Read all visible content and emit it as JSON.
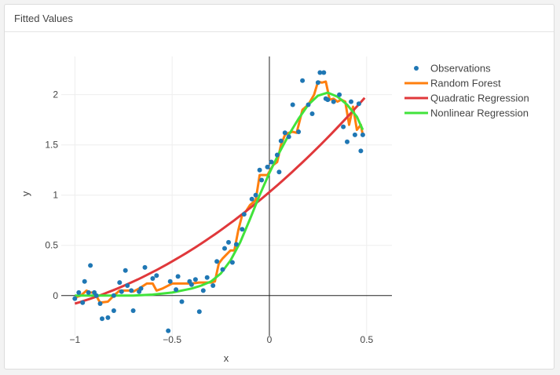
{
  "panel": {
    "title": "Fitted Values"
  },
  "colors": {
    "observations": "#1f77b4",
    "random_forest": "#ff7f0e",
    "quadratic": "#e0383b",
    "nonlinear": "#41e33b",
    "grid": "#eeeeee",
    "zero_line": "#222222"
  },
  "chart_data": {
    "type": "scatter",
    "xlabel": "x",
    "ylabel": "y",
    "xlim": [
      -1.07,
      0.63
    ],
    "ylim": [
      -0.4,
      2.38
    ],
    "x_ticks": [
      -1,
      -0.5,
      0,
      0.5
    ],
    "x_tick_labels": [
      "−1",
      "−0.5",
      "0",
      "0.5"
    ],
    "y_ticks": [
      0,
      0.5,
      1,
      1.5,
      2
    ],
    "y_tick_labels": [
      "0",
      "0.5",
      "1",
      "1.5",
      "2"
    ],
    "grid": true,
    "legend_position": "top-right",
    "series": [
      {
        "name": "Observations",
        "mode": "markers",
        "x": [
          -1.0,
          -0.98,
          -0.96,
          -0.95,
          -0.93,
          -0.92,
          -0.9,
          -0.89,
          -0.87,
          -0.86,
          -0.83,
          -0.8,
          -0.8,
          -0.77,
          -0.76,
          -0.74,
          -0.73,
          -0.71,
          -0.7,
          -0.67,
          -0.66,
          -0.64,
          -0.6,
          -0.58,
          -0.52,
          -0.51,
          -0.48,
          -0.47,
          -0.45,
          -0.41,
          -0.4,
          -0.38,
          -0.36,
          -0.34,
          -0.32,
          -0.29,
          -0.27,
          -0.24,
          -0.23,
          -0.21,
          -0.19,
          -0.17,
          -0.14,
          -0.13,
          -0.09,
          -0.07,
          -0.05,
          -0.04,
          -0.01,
          0.01,
          0.04,
          0.05,
          0.06,
          0.08,
          0.1,
          0.12,
          0.15,
          0.17,
          0.2,
          0.22,
          0.25,
          0.26,
          0.28,
          0.29,
          0.3,
          0.33,
          0.36,
          0.38,
          0.4,
          0.42,
          0.44,
          0.46,
          0.47,
          0.48
        ],
        "y": [
          -0.03,
          0.03,
          -0.07,
          0.14,
          0.03,
          0.3,
          0.03,
          0.0,
          -0.08,
          -0.23,
          -0.22,
          0.0,
          -0.15,
          0.13,
          0.04,
          0.25,
          0.1,
          0.05,
          -0.15,
          0.04,
          0.07,
          0.28,
          0.17,
          0.2,
          -0.35,
          0.14,
          0.06,
          0.19,
          -0.06,
          0.14,
          0.11,
          0.16,
          -0.16,
          0.05,
          0.18,
          0.1,
          0.34,
          0.26,
          0.47,
          0.53,
          0.33,
          0.51,
          0.66,
          0.81,
          0.96,
          1.0,
          1.25,
          1.15,
          1.28,
          1.33,
          1.4,
          1.23,
          1.54,
          1.62,
          1.58,
          1.9,
          1.63,
          2.14,
          1.9,
          1.81,
          2.12,
          2.22,
          2.22,
          1.96,
          1.95,
          1.93,
          2.0,
          1.68,
          1.53,
          1.93,
          1.6,
          1.91,
          1.44,
          1.6
        ]
      },
      {
        "name": "Random Forest",
        "mode": "lines",
        "x": [
          -1.0,
          -0.97,
          -0.94,
          -0.92,
          -0.9,
          -0.87,
          -0.83,
          -0.8,
          -0.77,
          -0.75,
          -0.72,
          -0.7,
          -0.67,
          -0.63,
          -0.6,
          -0.58,
          -0.55,
          -0.5,
          -0.45,
          -0.4,
          -0.36,
          -0.33,
          -0.3,
          -0.28,
          -0.26,
          -0.24,
          -0.2,
          -0.18,
          -0.16,
          -0.14,
          -0.12,
          -0.1,
          -0.07,
          -0.05,
          -0.03,
          -0.01,
          0.02,
          0.04,
          0.06,
          0.08,
          0.1,
          0.12,
          0.14,
          0.17,
          0.2,
          0.23,
          0.25,
          0.27,
          0.29,
          0.31,
          0.33,
          0.35,
          0.37,
          0.39,
          0.41,
          0.43,
          0.45,
          0.47,
          0.48
        ],
        "y": [
          -0.02,
          0.0,
          0.05,
          0.03,
          0.03,
          -0.07,
          -0.06,
          0.0,
          0.05,
          0.05,
          0.05,
          0.04,
          0.07,
          0.12,
          0.12,
          0.05,
          0.07,
          0.12,
          0.12,
          0.12,
          0.13,
          0.13,
          0.13,
          0.14,
          0.32,
          0.37,
          0.45,
          0.45,
          0.65,
          0.8,
          0.84,
          0.9,
          0.95,
          1.2,
          1.2,
          1.2,
          1.3,
          1.33,
          1.5,
          1.6,
          1.62,
          1.63,
          1.62,
          1.85,
          1.9,
          2.0,
          2.13,
          2.12,
          2.13,
          1.95,
          1.96,
          1.93,
          1.95,
          1.93,
          1.7,
          1.88,
          1.65,
          1.7,
          1.6
        ]
      },
      {
        "name": "Quadratic Regression",
        "mode": "lines",
        "formula": "y = 1.03 + 1.65x + 0.54x^2",
        "x_range": [
          -1.0,
          0.49
        ]
      },
      {
        "name": "Nonlinear Regression",
        "mode": "lines",
        "x": [
          -1.0,
          -0.9,
          -0.8,
          -0.7,
          -0.6,
          -0.5,
          -0.4,
          -0.35,
          -0.3,
          -0.25,
          -0.2,
          -0.15,
          -0.1,
          -0.05,
          0.0,
          0.05,
          0.1,
          0.15,
          0.2,
          0.25,
          0.3,
          0.35,
          0.4,
          0.45,
          0.48
        ],
        "y": [
          0.0,
          0.0,
          0.0,
          0.0,
          0.01,
          0.03,
          0.07,
          0.1,
          0.14,
          0.22,
          0.35,
          0.53,
          0.76,
          1.0,
          1.22,
          1.42,
          1.6,
          1.76,
          1.9,
          1.99,
          2.02,
          1.98,
          1.9,
          1.78,
          1.65
        ]
      }
    ]
  }
}
